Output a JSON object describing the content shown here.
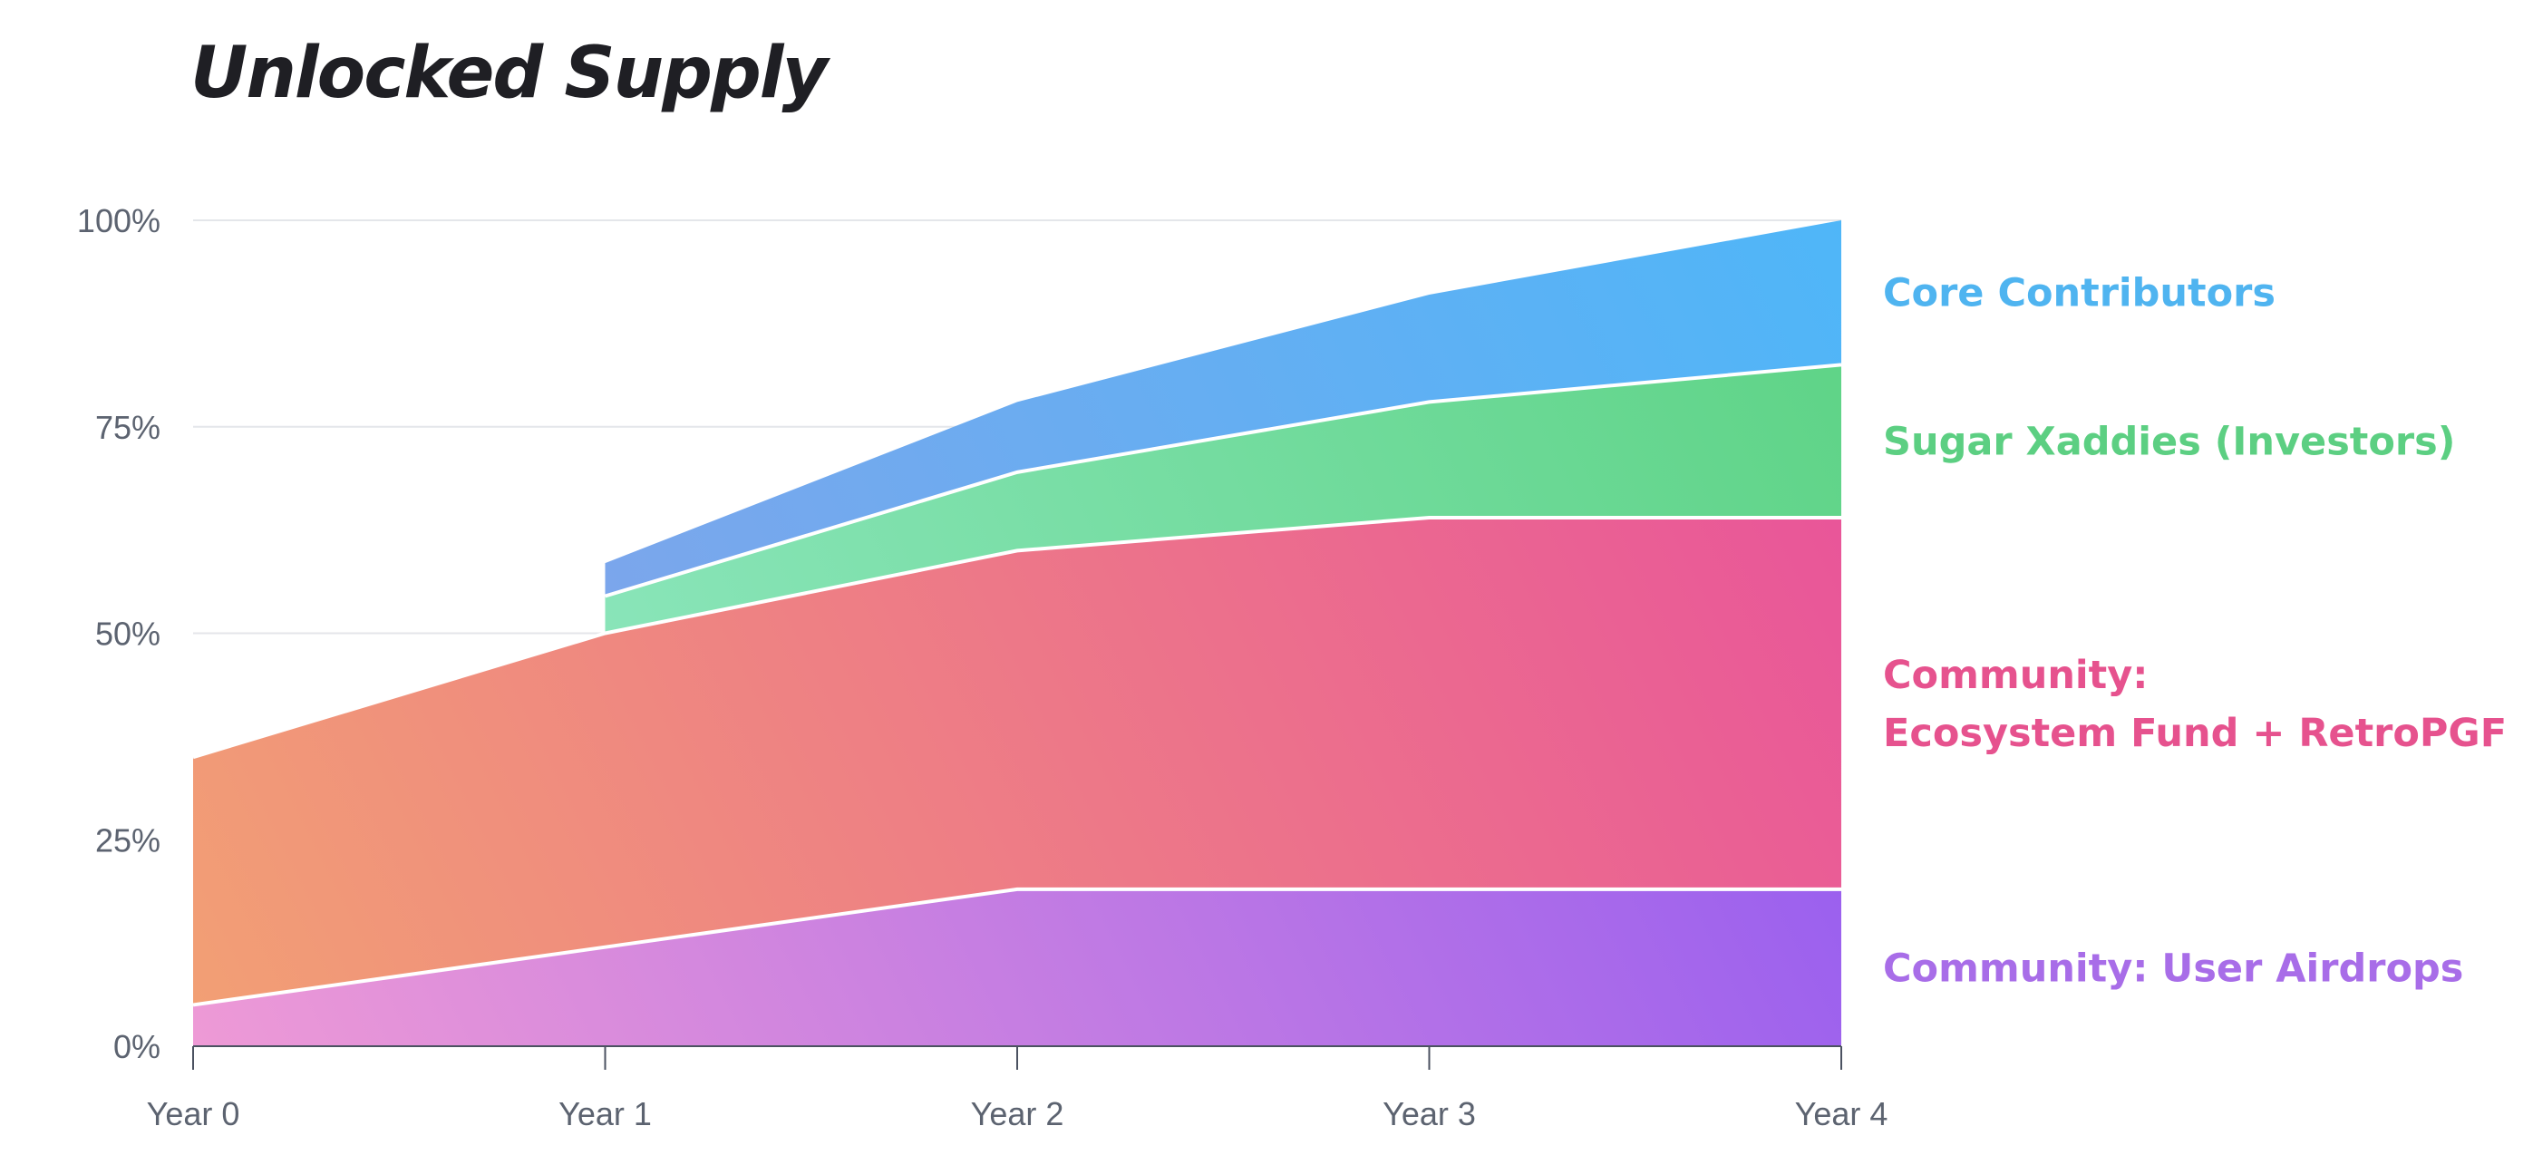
{
  "chart_data": {
    "type": "area",
    "stacked": true,
    "title": "Unlocked Supply",
    "xlabel": "",
    "ylabel": "",
    "x": [
      "Year 0",
      "Year 1",
      "Year 2",
      "Year 3",
      "Year 4"
    ],
    "ylim": [
      0,
      100
    ],
    "yticks": [
      "0%",
      "25%",
      "50%",
      "75%",
      "100%"
    ],
    "ytick_values": [
      0,
      25,
      50,
      75,
      100
    ],
    "grid": true,
    "legend": "right, labels beside area ends",
    "series": [
      {
        "name": "Community: User Airdrops",
        "values": [
          5,
          12,
          19,
          19,
          19
        ],
        "colors": [
          "#ee9ad6",
          "#8b55f3"
        ],
        "label_color": "#a86de8"
      },
      {
        "name": "Community: Ecosystem Fund + RetroPGF",
        "label_lines": [
          "Community:",
          "Ecosystem Fund + RetroPGF"
        ],
        "values": [
          30,
          38,
          41,
          45,
          45
        ],
        "colors": [
          "#f2a074",
          "#e8509c"
        ],
        "label_color": "#e6528e"
      },
      {
        "name": "Sugar Xaddies (Investors)",
        "values": [
          null,
          4.5,
          9.5,
          14,
          18.5
        ],
        "colors": [
          "#9ceccf",
          "#5dd385"
        ],
        "label_color": "#5ccf82"
      },
      {
        "name": "Core Contributors",
        "values": [
          null,
          4,
          8.5,
          13,
          17.5
        ],
        "colors": [
          "#8f9fe6",
          "#4fb6f8"
        ],
        "label_color": "#4fb4f0"
      }
    ]
  }
}
